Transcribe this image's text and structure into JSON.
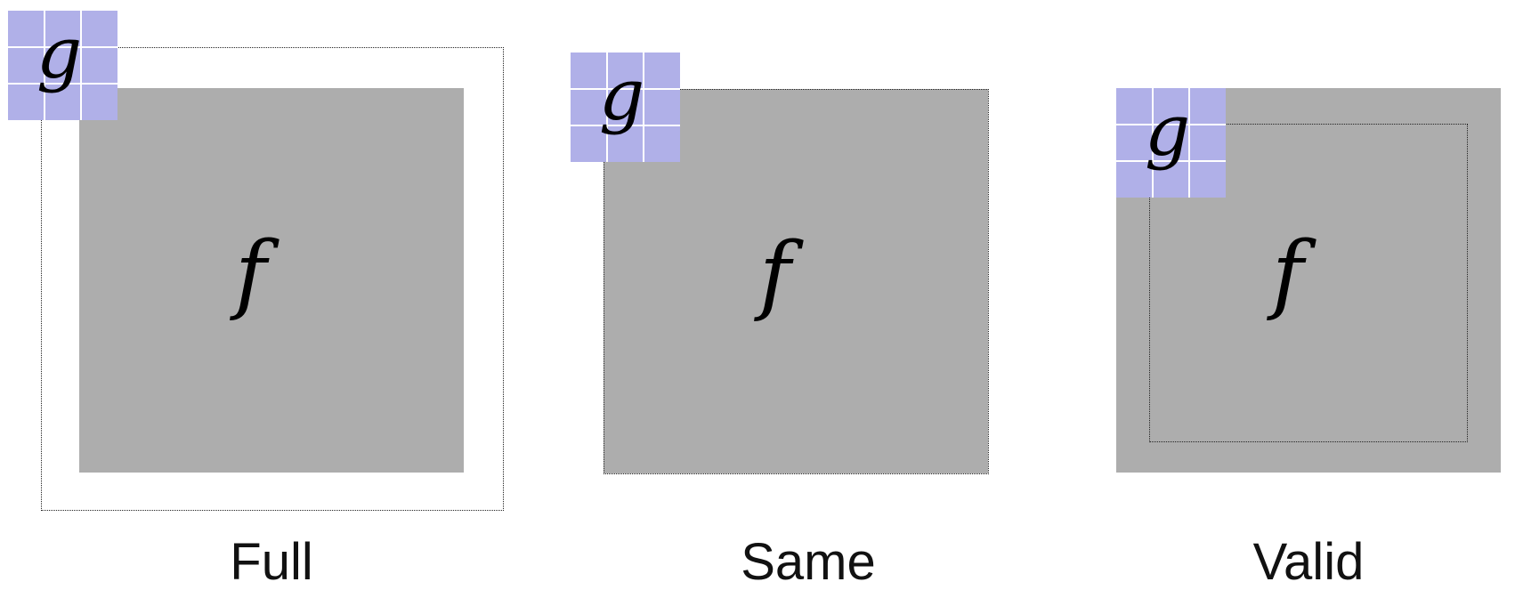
{
  "colors": {
    "image_fill": "#adadad",
    "kernel_fill": "#b0b0e8",
    "background": "#ffffff"
  },
  "panels": [
    {
      "caption": "Full",
      "image_label": "f",
      "kernel_label": "g"
    },
    {
      "caption": "Same",
      "image_label": "f",
      "kernel_label": "g"
    },
    {
      "caption": "Valid",
      "image_label": "f",
      "kernel_label": "g"
    }
  ]
}
